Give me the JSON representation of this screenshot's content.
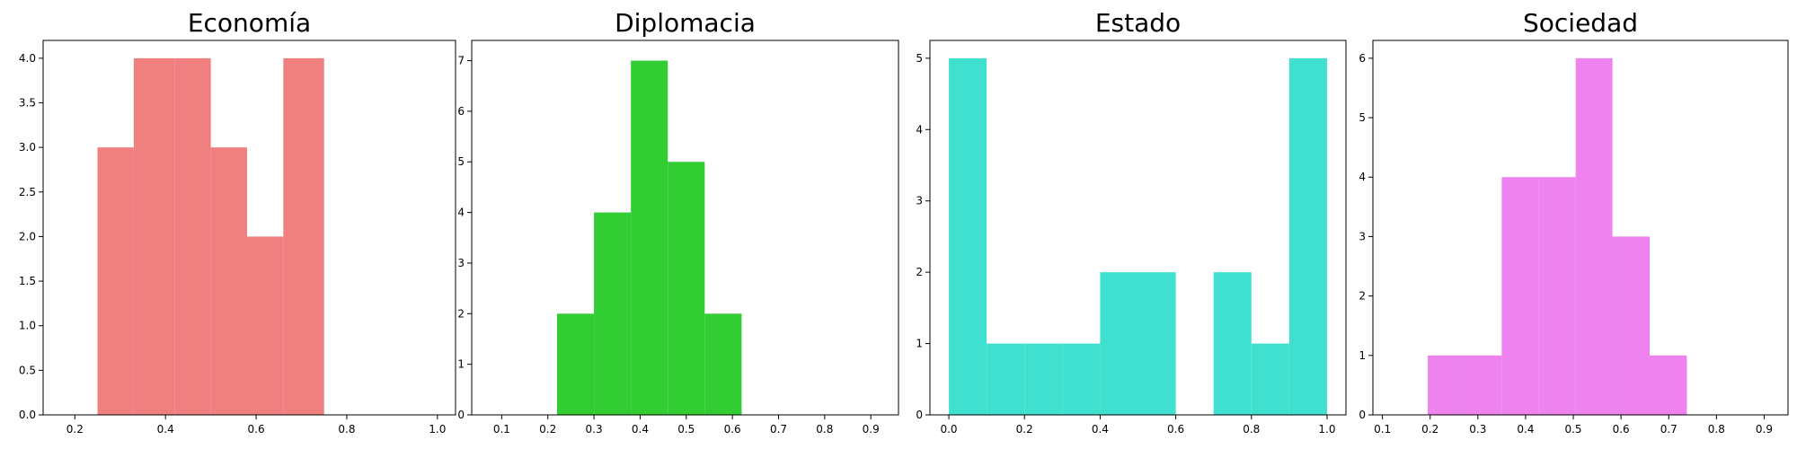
{
  "chart_data": [
    {
      "type": "bar",
      "title": "Economía",
      "color": "#F08080",
      "xlim": [
        0.13,
        1.04
      ],
      "ylim": [
        0,
        4.2
      ],
      "xticks": [
        "0.2",
        "0.4",
        "0.6",
        "0.8",
        "1.0"
      ],
      "yticks": [
        "0.0",
        "0.5",
        "1.0",
        "1.5",
        "2.0",
        "2.5",
        "3.0",
        "3.5",
        "4.0"
      ],
      "bins": [
        {
          "x0": 0.25,
          "x1": 0.33,
          "count": 3
        },
        {
          "x0": 0.33,
          "x1": 0.42,
          "count": 4
        },
        {
          "x0": 0.42,
          "x1": 0.5,
          "count": 4
        },
        {
          "x0": 0.5,
          "x1": 0.58,
          "count": 3
        },
        {
          "x0": 0.58,
          "x1": 0.66,
          "count": 2
        },
        {
          "x0": 0.66,
          "x1": 0.75,
          "count": 4
        }
      ]
    },
    {
      "type": "bar",
      "title": "Diplomacia",
      "color": "#32CD32",
      "xlim": [
        0.035,
        0.96
      ],
      "ylim": [
        0,
        7.4
      ],
      "xticks": [
        "0.1",
        "0.2",
        "0.3",
        "0.4",
        "0.5",
        "0.6",
        "0.7",
        "0.8",
        "0.9"
      ],
      "yticks": [
        "0",
        "1",
        "2",
        "3",
        "4",
        "5",
        "6",
        "7"
      ],
      "bins": [
        {
          "x0": 0.22,
          "x1": 0.3,
          "count": 2
        },
        {
          "x0": 0.3,
          "x1": 0.38,
          "count": 4
        },
        {
          "x0": 0.38,
          "x1": 0.46,
          "count": 7
        },
        {
          "x0": 0.46,
          "x1": 0.54,
          "count": 5
        },
        {
          "x0": 0.54,
          "x1": 0.62,
          "count": 2
        }
      ]
    },
    {
      "type": "bar",
      "title": "Estado",
      "color": "#40E0D0",
      "xlim": [
        -0.05,
        1.05
      ],
      "ylim": [
        0,
        5.25
      ],
      "xticks": [
        "0.0",
        "0.2",
        "0.4",
        "0.6",
        "0.8",
        "1.0"
      ],
      "yticks": [
        "0",
        "1",
        "2",
        "3",
        "4",
        "5"
      ],
      "bins": [
        {
          "x0": 0.0,
          "x1": 0.1,
          "count": 5
        },
        {
          "x0": 0.1,
          "x1": 0.2,
          "count": 1
        },
        {
          "x0": 0.2,
          "x1": 0.3,
          "count": 1
        },
        {
          "x0": 0.3,
          "x1": 0.4,
          "count": 1
        },
        {
          "x0": 0.4,
          "x1": 0.5,
          "count": 2
        },
        {
          "x0": 0.5,
          "x1": 0.6,
          "count": 2
        },
        {
          "x0": 0.6,
          "x1": 0.7,
          "count": 0
        },
        {
          "x0": 0.7,
          "x1": 0.8,
          "count": 2
        },
        {
          "x0": 0.8,
          "x1": 0.9,
          "count": 1
        },
        {
          "x0": 0.9,
          "x1": 1.0,
          "count": 5
        }
      ]
    },
    {
      "type": "bar",
      "title": "Sociedad",
      "color": "#EE82EE",
      "xlim": [
        0.08,
        0.95
      ],
      "ylim": [
        0,
        6.3
      ],
      "xticks": [
        "0.1",
        "0.2",
        "0.3",
        "0.4",
        "0.5",
        "0.6",
        "0.7",
        "0.8",
        "0.9"
      ],
      "yticks": [
        "0",
        "1",
        "2",
        "3",
        "4",
        "5",
        "6"
      ],
      "bins": [
        {
          "x0": 0.195,
          "x1": 0.272,
          "count": 1
        },
        {
          "x0": 0.272,
          "x1": 0.35,
          "count": 1
        },
        {
          "x0": 0.35,
          "x1": 0.428,
          "count": 4
        },
        {
          "x0": 0.428,
          "x1": 0.505,
          "count": 4
        },
        {
          "x0": 0.505,
          "x1": 0.582,
          "count": 6
        },
        {
          "x0": 0.582,
          "x1": 0.66,
          "count": 3
        },
        {
          "x0": 0.66,
          "x1": 0.738,
          "count": 1
        }
      ]
    }
  ]
}
